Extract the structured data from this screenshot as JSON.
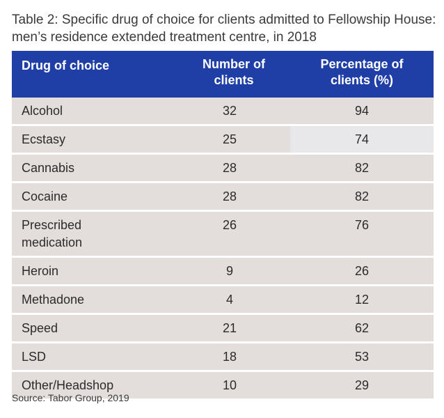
{
  "caption": "Table 2: Specific drug of choice for clients admitted to Fellowship House: men’s residence extended treatment centre, in 2018",
  "table": {
    "headers": [
      "Drug of choice",
      "Number of clients",
      "Percentage of clients (%)"
    ],
    "rows": [
      [
        "Alcohol",
        "32",
        "94"
      ],
      [
        "Ecstasy",
        "25",
        "74"
      ],
      [
        "Cannabis",
        "28",
        "82"
      ],
      [
        "Cocaine",
        "28",
        "82"
      ],
      [
        "Prescribed medication",
        "26",
        "76"
      ],
      [
        "Heroin",
        "9",
        "26"
      ],
      [
        "Methadone",
        "4",
        "12"
      ],
      [
        "Speed",
        "21",
        "62"
      ],
      [
        "LSD",
        "18",
        "53"
      ],
      [
        "Other/Headshop",
        "10",
        "29"
      ]
    ]
  },
  "source": "Source: Tabor Group, 2019",
  "colors": {
    "header_background": "#1f3fa6",
    "header_text": "#ffffff",
    "row_background": "#e3dedb"
  }
}
